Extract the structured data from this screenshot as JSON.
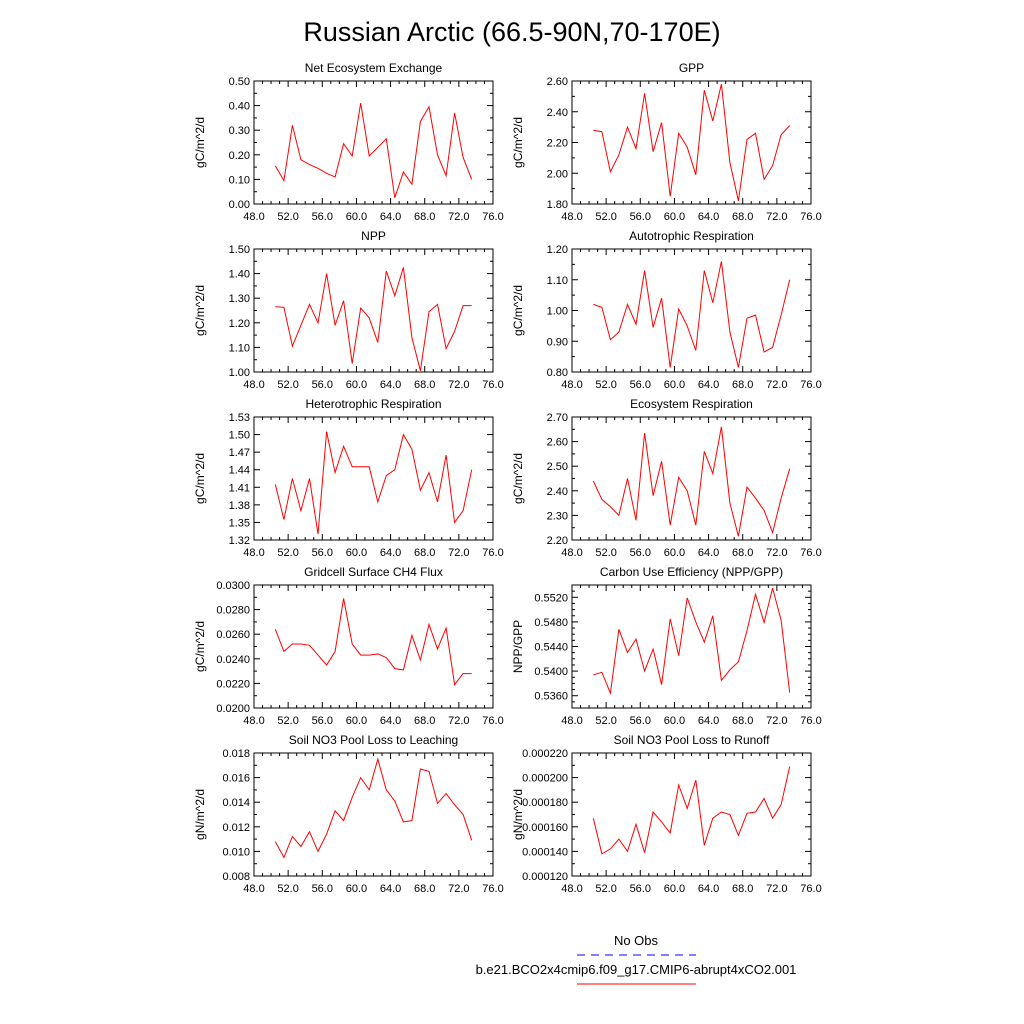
{
  "title": "Russian Arctic (66.5-90N,70-170E)",
  "legend": {
    "entries": [
      {
        "label": "No Obs",
        "color": "#0000ff",
        "dash": true
      },
      {
        "label": "b.e21.BCO2x4cmip6.f09_g17.CMIP6-abrupt4xCO2.001",
        "color": "#ff0000",
        "dash": false
      }
    ]
  },
  "chart_data": [
    {
      "type": "line",
      "title": "Net Ecosystem Exchange",
      "ylabel": "gC/m^2/d",
      "xlim": [
        48,
        76
      ],
      "ylim": [
        0,
        0.5
      ],
      "xticks": [
        "48.0",
        "52.0",
        "56.0",
        "60.0",
        "64.0",
        "68.0",
        "72.0",
        "76.0"
      ],
      "yticks": [
        "0.00",
        "0.10",
        "0.20",
        "0.30",
        "0.40",
        "0.50"
      ],
      "yminor": [
        0.05,
        0.15,
        0.25,
        0.35,
        0.45
      ],
      "series": [
        {
          "name": "b.e21.BCO2x4cmip6.f09_g17.CMIP6-abrupt4xCO2.001",
          "x": [
            50.5,
            51.5,
            52.5,
            53.5,
            54.5,
            55.5,
            56.5,
            57.5,
            58.5,
            59.5,
            60.5,
            61.5,
            62.5,
            63.5,
            64.5,
            65.5,
            66.5,
            67.5,
            68.5,
            69.5,
            70.5,
            71.5,
            72.5,
            73.5
          ],
          "y": [
            0.155,
            0.095,
            0.32,
            0.18,
            0.16,
            0.145,
            0.125,
            0.11,
            0.245,
            0.195,
            0.41,
            0.195,
            0.23,
            0.265,
            0.025,
            0.13,
            0.08,
            0.335,
            0.395,
            0.2,
            0.115,
            0.37,
            0.19,
            0.1
          ]
        }
      ]
    },
    {
      "type": "line",
      "title": "GPP",
      "ylabel": "gC/m^2/d",
      "xlim": [
        48,
        76
      ],
      "ylim": [
        1.8,
        2.6
      ],
      "xticks": [
        "48.0",
        "52.0",
        "56.0",
        "60.0",
        "64.0",
        "68.0",
        "72.0",
        "76.0"
      ],
      "yticks": [
        "1.80",
        "2.00",
        "2.20",
        "2.40",
        "2.60"
      ],
      "yminor": [
        1.9,
        2.1,
        2.3,
        2.5
      ],
      "series": [
        {
          "name": "b.e21.BCO2x4cmip6.f09_g17.CMIP6-abrupt4xCO2.001",
          "x": [
            50.5,
            51.5,
            52.5,
            53.5,
            54.5,
            55.5,
            56.5,
            57.5,
            58.5,
            59.5,
            60.5,
            61.5,
            62.5,
            63.5,
            64.5,
            65.5,
            66.5,
            67.5,
            68.5,
            69.5,
            70.5,
            71.5,
            72.5,
            73.5
          ],
          "y": [
            2.28,
            2.27,
            2.01,
            2.12,
            2.3,
            2.16,
            2.52,
            2.14,
            2.33,
            1.85,
            2.26,
            2.17,
            1.99,
            2.54,
            2.34,
            2.58,
            2.07,
            1.82,
            2.22,
            2.26,
            1.96,
            2.05,
            2.25,
            2.31
          ]
        }
      ]
    },
    {
      "type": "line",
      "title": "NPP",
      "ylabel": "gC/m^2/d",
      "xlim": [
        48,
        76
      ],
      "ylim": [
        1.0,
        1.5
      ],
      "xticks": [
        "48.0",
        "52.0",
        "56.0",
        "60.0",
        "64.0",
        "68.0",
        "72.0",
        "76.0"
      ],
      "yticks": [
        "1.00",
        "1.10",
        "1.20",
        "1.30",
        "1.40",
        "1.50"
      ],
      "yminor": [
        1.05,
        1.15,
        1.25,
        1.35,
        1.45
      ],
      "series": [
        {
          "name": "b.e21.BCO2x4cmip6.f09_g17.CMIP6-abrupt4xCO2.001",
          "x": [
            50.5,
            51.5,
            52.5,
            53.5,
            54.5,
            55.5,
            56.5,
            57.5,
            58.5,
            59.5,
            60.5,
            61.5,
            62.5,
            63.5,
            64.5,
            65.5,
            66.5,
            67.5,
            68.5,
            69.5,
            70.5,
            71.5,
            72.5,
            73.5
          ],
          "y": [
            1.265,
            1.263,
            1.105,
            1.19,
            1.275,
            1.2,
            1.4,
            1.19,
            1.29,
            1.035,
            1.26,
            1.22,
            1.12,
            1.41,
            1.31,
            1.425,
            1.14,
            1.005,
            1.245,
            1.275,
            1.095,
            1.165,
            1.27,
            1.27
          ]
        }
      ]
    },
    {
      "type": "line",
      "title": "Autotrophic Respiration",
      "ylabel": "gC/m^2/d",
      "xlim": [
        48,
        76
      ],
      "ylim": [
        0.8,
        1.2
      ],
      "xticks": [
        "48.0",
        "52.0",
        "56.0",
        "60.0",
        "64.0",
        "68.0",
        "72.0",
        "76.0"
      ],
      "yticks": [
        "0.80",
        "0.90",
        "1.00",
        "1.10",
        "1.20"
      ],
      "yminor": [
        0.85,
        0.95,
        1.05,
        1.15
      ],
      "series": [
        {
          "name": "b.e21.BCO2x4cmip6.f09_g17.CMIP6-abrupt4xCO2.001",
          "x": [
            50.5,
            51.5,
            52.5,
            53.5,
            54.5,
            55.5,
            56.5,
            57.5,
            58.5,
            59.5,
            60.5,
            61.5,
            62.5,
            63.5,
            64.5,
            65.5,
            66.5,
            67.5,
            68.5,
            69.5,
            70.5,
            71.5,
            72.5,
            73.5
          ],
          "y": [
            1.02,
            1.01,
            0.905,
            0.93,
            1.02,
            0.955,
            1.13,
            0.945,
            1.04,
            0.815,
            1.005,
            0.95,
            0.87,
            1.13,
            1.025,
            1.16,
            0.93,
            0.815,
            0.975,
            0.985,
            0.865,
            0.88,
            0.985,
            1.1
          ]
        }
      ]
    },
    {
      "type": "line",
      "title": "Heterotrophic Respiration",
      "ylabel": "gC/m^2/d",
      "xlim": [
        48,
        76
      ],
      "ylim": [
        1.32,
        1.53
      ],
      "xticks": [
        "48.0",
        "52.0",
        "56.0",
        "60.0",
        "64.0",
        "68.0",
        "72.0",
        "76.0"
      ],
      "yticks": [
        "1.32",
        "1.35",
        "1.38",
        "1.41",
        "1.44",
        "1.47",
        "1.50",
        "1.53"
      ],
      "yminor": [],
      "series": [
        {
          "name": "b.e21.BCO2x4cmip6.f09_g17.CMIP6-abrupt4xCO2.001",
          "x": [
            50.5,
            51.5,
            52.5,
            53.5,
            54.5,
            55.5,
            56.5,
            57.5,
            58.5,
            59.5,
            60.5,
            61.5,
            62.5,
            63.5,
            64.5,
            65.5,
            66.5,
            67.5,
            68.5,
            69.5,
            70.5,
            71.5,
            72.5,
            73.5
          ],
          "y": [
            1.415,
            1.355,
            1.425,
            1.37,
            1.425,
            1.33,
            1.505,
            1.435,
            1.48,
            1.445,
            1.445,
            1.445,
            1.385,
            1.43,
            1.44,
            1.5,
            1.475,
            1.405,
            1.435,
            1.385,
            1.465,
            1.35,
            1.37,
            1.44
          ]
        }
      ]
    },
    {
      "type": "line",
      "title": "Ecosystem Respiration",
      "ylabel": "gC/m^2/d",
      "xlim": [
        48,
        76
      ],
      "ylim": [
        2.2,
        2.7
      ],
      "xticks": [
        "48.0",
        "52.0",
        "56.0",
        "60.0",
        "64.0",
        "68.0",
        "72.0",
        "76.0"
      ],
      "yticks": [
        "2.20",
        "2.30",
        "2.40",
        "2.50",
        "2.60",
        "2.70"
      ],
      "yminor": [
        2.25,
        2.35,
        2.45,
        2.55,
        2.65
      ],
      "series": [
        {
          "name": "b.e21.BCO2x4cmip6.f09_g17.CMIP6-abrupt4xCO2.001",
          "x": [
            50.5,
            51.5,
            52.5,
            53.5,
            54.5,
            55.5,
            56.5,
            57.5,
            58.5,
            59.5,
            60.5,
            61.5,
            62.5,
            63.5,
            64.5,
            65.5,
            66.5,
            67.5,
            68.5,
            69.5,
            70.5,
            71.5,
            72.5,
            73.5
          ],
          "y": [
            2.44,
            2.365,
            2.335,
            2.3,
            2.45,
            2.28,
            2.635,
            2.38,
            2.52,
            2.26,
            2.455,
            2.4,
            2.26,
            2.56,
            2.47,
            2.66,
            2.35,
            2.215,
            2.415,
            2.37,
            2.32,
            2.23,
            2.37,
            2.49
          ]
        }
      ]
    },
    {
      "type": "line",
      "title": "Gridcell Surface CH4 Flux",
      "ylabel": "gC/m^2/d",
      "xlim": [
        48,
        76
      ],
      "ylim": [
        0.02,
        0.03
      ],
      "xticks": [
        "48.0",
        "52.0",
        "56.0",
        "60.0",
        "64.0",
        "68.0",
        "72.0",
        "76.0"
      ],
      "yticks": [
        "0.0200",
        "0.0220",
        "0.0240",
        "0.0260",
        "0.0280",
        "0.0300"
      ],
      "yminor": [
        0.021,
        0.023,
        0.025,
        0.027,
        0.029
      ],
      "series": [
        {
          "name": "b.e21.BCO2x4cmip6.f09_g17.CMIP6-abrupt4xCO2.001",
          "x": [
            50.5,
            51.5,
            52.5,
            53.5,
            54.5,
            55.5,
            56.5,
            57.5,
            58.5,
            59.5,
            60.5,
            61.5,
            62.5,
            63.5,
            64.5,
            65.5,
            66.5,
            67.5,
            68.5,
            69.5,
            70.5,
            71.5,
            72.5,
            73.5
          ],
          "y": [
            0.0264,
            0.0246,
            0.0252,
            0.0252,
            0.0251,
            0.0243,
            0.0235,
            0.0246,
            0.0289,
            0.0252,
            0.0243,
            0.0243,
            0.0244,
            0.0241,
            0.0232,
            0.0231,
            0.0259,
            0.0239,
            0.0268,
            0.0248,
            0.0265,
            0.0219,
            0.0228,
            0.0228
          ]
        }
      ]
    },
    {
      "type": "line",
      "title": "Carbon Use Efficiency (NPP/GPP)",
      "ylabel": "NPP/GPP",
      "xlim": [
        48,
        76
      ],
      "ylim": [
        0.534,
        0.554
      ],
      "xticks": [
        "48.0",
        "52.0",
        "56.0",
        "60.0",
        "64.0",
        "68.0",
        "72.0",
        "76.0"
      ],
      "yticks": [
        "0.5360",
        "0.5400",
        "0.5440",
        "0.5480",
        "0.5520"
      ],
      "ytick_values": [
        0.536,
        0.54,
        0.544,
        0.548,
        0.552
      ],
      "yminor": [
        0.535,
        0.537,
        0.538,
        0.539,
        0.541,
        0.542,
        0.543,
        0.545,
        0.546,
        0.547,
        0.549,
        0.55,
        0.551,
        0.553,
        0.554
      ],
      "series": [
        {
          "name": "b.e21.BCO2x4cmip6.f09_g17.CMIP6-abrupt4xCO2.001",
          "x": [
            50.5,
            51.5,
            52.5,
            53.5,
            54.5,
            55.5,
            56.5,
            57.5,
            58.5,
            59.5,
            60.5,
            61.5,
            62.5,
            63.5,
            64.5,
            65.5,
            66.5,
            67.5,
            68.5,
            69.5,
            70.5,
            71.5,
            72.5,
            73.5
          ],
          "y": [
            0.5394,
            0.5398,
            0.5364,
            0.5468,
            0.543,
            0.5452,
            0.54,
            0.5436,
            0.5378,
            0.5485,
            0.5425,
            0.5519,
            0.548,
            0.5447,
            0.549,
            0.5385,
            0.5402,
            0.5415,
            0.5466,
            0.5525,
            0.5479,
            0.5535,
            0.5483,
            0.5365
          ]
        }
      ]
    },
    {
      "type": "line",
      "title": "Soil NO3 Pool Loss to Leaching",
      "ylabel": "gN/m^2/d",
      "xlim": [
        48,
        76
      ],
      "ylim": [
        0.008,
        0.018
      ],
      "xticks": [
        "48.0",
        "52.0",
        "56.0",
        "60.0",
        "64.0",
        "68.0",
        "72.0",
        "76.0"
      ],
      "yticks": [
        "0.008",
        "0.010",
        "0.012",
        "0.014",
        "0.016",
        "0.018"
      ],
      "yminor": [
        0.009,
        0.011,
        0.013,
        0.015,
        0.017
      ],
      "series": [
        {
          "name": "b.e21.BCO2x4cmip6.f09_g17.CMIP6-abrupt4xCO2.001",
          "x": [
            50.5,
            51.5,
            52.5,
            53.5,
            54.5,
            55.5,
            56.5,
            57.5,
            58.5,
            59.5,
            60.5,
            61.5,
            62.5,
            63.5,
            64.5,
            65.5,
            66.5,
            67.5,
            68.5,
            69.5,
            70.5,
            71.5,
            72.5,
            73.5
          ],
          "y": [
            0.0108,
            0.0095,
            0.0112,
            0.0104,
            0.0116,
            0.01,
            0.0114,
            0.0133,
            0.0125,
            0.0144,
            0.016,
            0.015,
            0.0175,
            0.015,
            0.0141,
            0.0124,
            0.0125,
            0.0167,
            0.0165,
            0.0139,
            0.0147,
            0.0138,
            0.013,
            0.0109
          ]
        }
      ]
    },
    {
      "type": "line",
      "title": "Soil NO3 Pool Loss to Runoff",
      "ylabel": "gN/m^2/d",
      "xlim": [
        48,
        76
      ],
      "ylim": [
        0.00012,
        0.00022
      ],
      "xticks": [
        "48.0",
        "52.0",
        "56.0",
        "60.0",
        "64.0",
        "68.0",
        "72.0",
        "76.0"
      ],
      "yticks": [
        "0.000120",
        "0.000140",
        "0.000160",
        "0.000180",
        "0.000200",
        "0.000220"
      ],
      "yminor": [
        0.00013,
        0.00015,
        0.00017,
        0.00019,
        0.00021
      ],
      "series": [
        {
          "name": "b.e21.BCO2x4cmip6.f09_g17.CMIP6-abrupt4xCO2.001",
          "x": [
            50.5,
            51.5,
            52.5,
            53.5,
            54.5,
            55.5,
            56.5,
            57.5,
            58.5,
            59.5,
            60.5,
            61.5,
            62.5,
            63.5,
            64.5,
            65.5,
            66.5,
            67.5,
            68.5,
            69.5,
            70.5,
            71.5,
            72.5,
            73.5
          ],
          "y": [
            0.000167,
            0.000138,
            0.000142,
            0.00015,
            0.00014,
            0.000162,
            0.000139,
            0.000172,
            0.000164,
            0.000155,
            0.000194,
            0.000175,
            0.000198,
            0.000145,
            0.000167,
            0.000172,
            0.00017,
            0.000153,
            0.000171,
            0.000172,
            0.000183,
            0.000167,
            0.000178,
            0.000209
          ]
        }
      ]
    }
  ]
}
